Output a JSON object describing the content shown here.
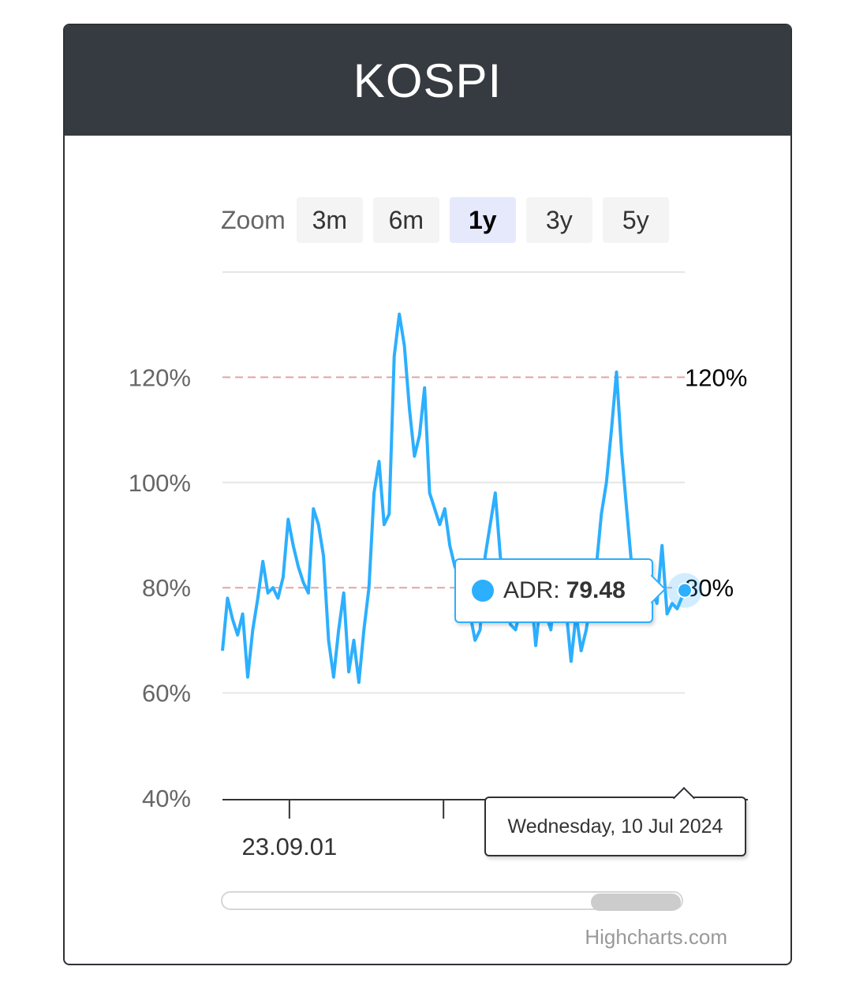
{
  "card": {
    "title": "KOSPI"
  },
  "zoom": {
    "label": "Zoom",
    "buttons": [
      "3m",
      "6m",
      "1y",
      "3y",
      "5y"
    ],
    "active": "1y"
  },
  "credits": "Highcharts.com",
  "colors": {
    "series": "#2caffe",
    "header": "#363b41",
    "plot_line": "#e4a3a3",
    "grid": "#e6e6e6"
  },
  "tooltip": {
    "series_name": "ADR:",
    "value": "79.48",
    "date": "Wednesday, 10 Jul 2024"
  },
  "chart_data": {
    "type": "line",
    "title": "",
    "y_tick_labels": [
      "40%",
      "60%",
      "80%",
      "100%",
      "120%"
    ],
    "ylim": [
      40,
      140
    ],
    "x_tick_labels": [
      "23.09.01"
    ],
    "xlim": [
      "2023-07-10",
      "2024-07-10"
    ],
    "plot_lines": [
      {
        "value": 120,
        "label": "120%"
      },
      {
        "value": 80,
        "label": "80%"
      }
    ],
    "grid": true,
    "legend": "none",
    "series": [
      {
        "name": "ADR",
        "x": [
          "2023-07-10",
          "2023-07-14",
          "2023-07-18",
          "2023-07-22",
          "2023-07-26",
          "2023-07-30",
          "2023-08-03",
          "2023-08-07",
          "2023-08-11",
          "2023-08-15",
          "2023-08-19",
          "2023-08-23",
          "2023-08-27",
          "2023-08-31",
          "2023-09-04",
          "2023-09-08",
          "2023-09-12",
          "2023-09-16",
          "2023-09-20",
          "2023-09-24",
          "2023-09-28",
          "2023-10-02",
          "2023-10-06",
          "2023-10-10",
          "2023-10-14",
          "2023-10-18",
          "2023-10-22",
          "2023-10-26",
          "2023-10-30",
          "2023-11-03",
          "2023-11-07",
          "2023-11-11",
          "2023-11-15",
          "2023-11-19",
          "2023-11-23",
          "2023-11-27",
          "2023-12-01",
          "2023-12-05",
          "2023-12-09",
          "2023-12-13",
          "2023-12-17",
          "2023-12-21",
          "2023-12-25",
          "2023-12-29",
          "2024-01-02",
          "2024-01-06",
          "2024-01-10",
          "2024-01-14",
          "2024-01-18",
          "2024-01-22",
          "2024-01-26",
          "2024-01-30",
          "2024-02-03",
          "2024-02-07",
          "2024-02-11",
          "2024-02-15",
          "2024-02-19",
          "2024-02-23",
          "2024-02-27",
          "2024-03-02",
          "2024-03-06",
          "2024-03-10",
          "2024-03-14",
          "2024-03-18",
          "2024-03-22",
          "2024-03-26",
          "2024-03-30",
          "2024-04-03",
          "2024-04-07",
          "2024-04-11",
          "2024-04-15",
          "2024-04-19",
          "2024-04-23",
          "2024-04-27",
          "2024-05-01",
          "2024-05-05",
          "2024-05-09",
          "2024-05-13",
          "2024-05-17",
          "2024-05-21",
          "2024-05-25",
          "2024-05-29",
          "2024-06-02",
          "2024-06-06",
          "2024-06-10",
          "2024-06-14",
          "2024-06-18",
          "2024-06-22",
          "2024-06-26",
          "2024-06-30",
          "2024-07-04",
          "2024-07-10"
        ],
        "y": [
          68,
          78,
          74,
          71,
          75,
          63,
          72,
          78,
          85,
          79,
          80,
          78,
          82,
          93,
          88,
          84,
          81,
          79,
          95,
          92,
          86,
          70,
          63,
          72,
          79,
          64,
          70,
          62,
          72,
          80,
          98,
          104,
          92,
          94,
          124,
          132,
          126,
          114,
          105,
          109,
          118,
          98,
          95,
          92,
          95,
          88,
          84,
          82,
          79,
          75,
          70,
          72,
          86,
          92,
          98,
          86,
          78,
          73,
          72,
          76,
          77,
          80,
          69,
          78,
          75,
          72,
          82,
          74,
          76,
          66,
          75,
          68,
          72,
          78,
          84,
          94,
          100,
          110,
          121,
          106,
          95,
          84,
          76,
          79,
          78,
          80,
          77,
          88,
          75,
          77,
          76,
          79.48
        ]
      }
    ]
  }
}
